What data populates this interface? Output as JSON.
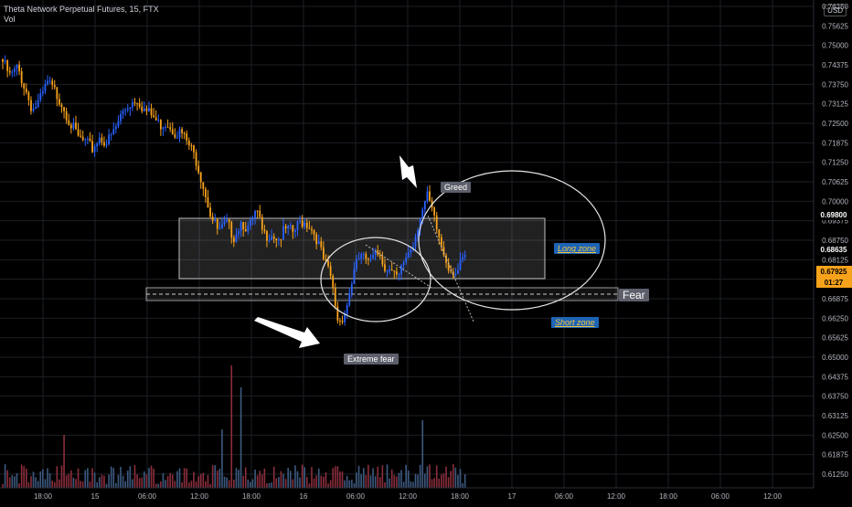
{
  "header": {
    "title": "Theta Network Perpetual Futures, 15, FTX",
    "volume_label": "Vol",
    "currency": "USD"
  },
  "colors": {
    "up": "#2962ff",
    "down": "#f7a21b",
    "vol_up": "#3d5a80",
    "vol_down": "#8b2e3c",
    "grid": "#1c1f26",
    "axis_text": "#b2b5be",
    "price_tag": "#f7a21b",
    "annotation_gray": "#5d606b",
    "annotation_blue": "#1e64b4"
  },
  "chart_data": {
    "type": "candlestick",
    "title": "Theta Network Perpetual Futures, 15, FTX",
    "y_ticks": [
      "0.76250",
      "0.75625",
      "0.75000",
      "0.74375",
      "0.73750",
      "0.73125",
      "0.72500",
      "0.71875",
      "0.71250",
      "0.70625",
      "0.70000",
      "0.69375",
      "0.68750",
      "0.68125",
      "0.67500",
      "0.66875",
      "0.66250",
      "0.65625",
      "0.65000",
      "0.64375",
      "0.63750",
      "0.63125",
      "0.62500",
      "0.61875",
      "0.61250"
    ],
    "x_ticks": [
      "18:00",
      "15",
      "06:00",
      "12:00",
      "18:00",
      "16",
      "06:00",
      "12:00",
      "18:00",
      "17",
      "06:00",
      "12:00",
      "18:00",
      "06:00",
      "12:00"
    ],
    "ylim": [
      0.6095,
      0.7655
    ],
    "price_labels": {
      "level_1": "0.69800",
      "level_2": "0.68635",
      "last_price": "0.67925",
      "countdown": "01:27"
    },
    "anchors": [
      0.747,
      0.742,
      0.745,
      0.738,
      0.731,
      0.734,
      0.74,
      0.737,
      0.733,
      0.727,
      0.722,
      0.72,
      0.718,
      0.722,
      0.72,
      0.724,
      0.73,
      0.733,
      0.735,
      0.731,
      0.729,
      0.726,
      0.727,
      0.724,
      0.723,
      0.719,
      0.714,
      0.705,
      0.695,
      0.69,
      0.693,
      0.689,
      0.694,
      0.691,
      0.697,
      0.689,
      0.69,
      0.688,
      0.691,
      0.69,
      0.694,
      0.693,
      0.689,
      0.681,
      0.675,
      0.66,
      0.664,
      0.676,
      0.683,
      0.679,
      0.686,
      0.68,
      0.677,
      0.674,
      0.682,
      0.686,
      0.696,
      0.702,
      0.693,
      0.684,
      0.678,
      0.677,
      0.682
    ],
    "annotations": {
      "greed": "Greed",
      "long_zone": "Long zone",
      "fear": "Fear",
      "short_zone": "Short zone",
      "extreme_fear": "Extreme fear"
    }
  }
}
